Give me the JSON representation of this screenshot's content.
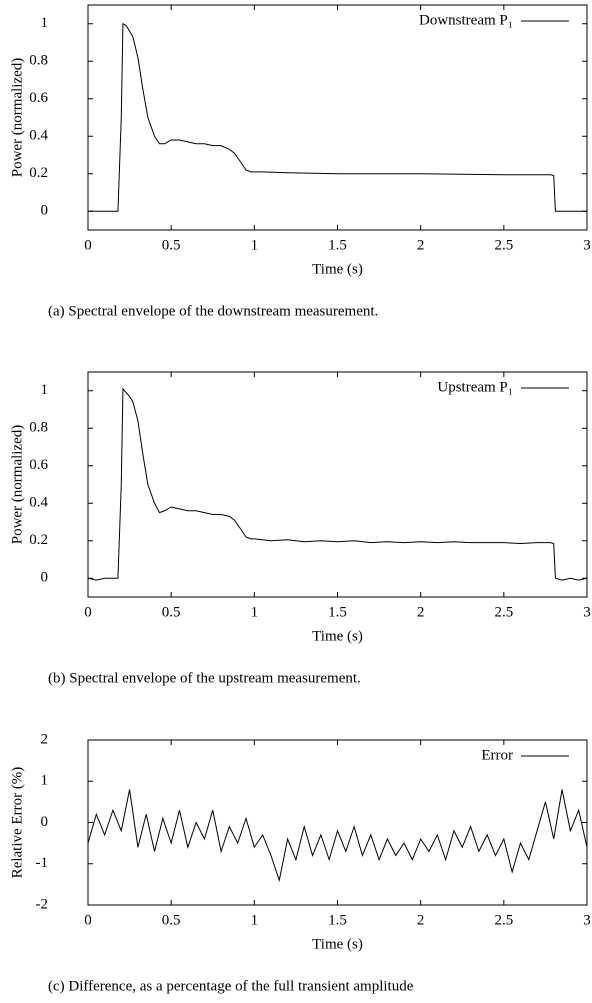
{
  "chart_data": [
    {
      "type": "line",
      "caption": "(a) Spectral envelope of the downstream measurement.",
      "xlabel": "Time (s)",
      "ylabel": "Power (normalized)",
      "xlim": [
        0,
        3
      ],
      "xticks": [
        0,
        0.5,
        1,
        1.5,
        2,
        2.5,
        3
      ],
      "ylim": [
        -0.1,
        1.1
      ],
      "yticks": [
        0,
        0.2,
        0.4,
        0.6,
        0.8,
        1
      ],
      "legend": "upper right",
      "series": [
        {
          "name": "Downstream P₁",
          "color": "#000000",
          "x": [
            0,
            0.18,
            0.2,
            0.21,
            0.23,
            0.25,
            0.27,
            0.3,
            0.33,
            0.36,
            0.4,
            0.43,
            0.46,
            0.5,
            0.55,
            0.6,
            0.65,
            0.7,
            0.75,
            0.8,
            0.85,
            0.88,
            0.92,
            0.95,
            0.98,
            1.0,
            1.05,
            1.2,
            1.5,
            2.0,
            2.5,
            2.78,
            2.8,
            2.81,
            3
          ],
          "values": [
            0,
            0,
            0.5,
            1.0,
            0.99,
            0.96,
            0.93,
            0.82,
            0.65,
            0.5,
            0.4,
            0.36,
            0.36,
            0.38,
            0.38,
            0.37,
            0.36,
            0.36,
            0.35,
            0.35,
            0.33,
            0.31,
            0.26,
            0.22,
            0.21,
            0.21,
            0.21,
            0.205,
            0.2,
            0.2,
            0.195,
            0.195,
            0.19,
            0,
            0
          ]
        }
      ]
    },
    {
      "type": "line",
      "caption": "(b) Spectral envelope of the upstream measurement.",
      "xlabel": "Time (s)",
      "ylabel": "Power (normalized)",
      "xlim": [
        0,
        3
      ],
      "xticks": [
        0,
        0.5,
        1,
        1.5,
        2,
        2.5,
        3
      ],
      "ylim": [
        -0.1,
        1.1
      ],
      "yticks": [
        0,
        0.2,
        0.4,
        0.6,
        0.8,
        1
      ],
      "legend": "upper right",
      "series": [
        {
          "name": "Upstream P₁",
          "color": "#000000",
          "x": [
            0,
            0.05,
            0.1,
            0.15,
            0.18,
            0.2,
            0.21,
            0.23,
            0.25,
            0.27,
            0.3,
            0.33,
            0.36,
            0.4,
            0.43,
            0.46,
            0.5,
            0.55,
            0.6,
            0.65,
            0.7,
            0.75,
            0.8,
            0.85,
            0.88,
            0.92,
            0.95,
            0.98,
            1.0,
            1.1,
            1.2,
            1.3,
            1.4,
            1.5,
            1.6,
            1.7,
            1.8,
            1.9,
            2.0,
            2.1,
            2.2,
            2.3,
            2.4,
            2.5,
            2.6,
            2.7,
            2.78,
            2.8,
            2.81,
            2.85,
            2.9,
            2.95,
            3
          ],
          "values": [
            0,
            -0.01,
            0.0,
            0.0,
            0.0,
            0.5,
            1.01,
            0.99,
            0.97,
            0.94,
            0.84,
            0.66,
            0.5,
            0.4,
            0.35,
            0.36,
            0.38,
            0.37,
            0.36,
            0.36,
            0.35,
            0.34,
            0.34,
            0.33,
            0.31,
            0.26,
            0.22,
            0.21,
            0.21,
            0.2,
            0.205,
            0.195,
            0.2,
            0.195,
            0.2,
            0.19,
            0.195,
            0.19,
            0.195,
            0.19,
            0.195,
            0.19,
            0.19,
            0.19,
            0.185,
            0.19,
            0.19,
            0.185,
            0,
            -0.01,
            0.0,
            -0.01,
            0
          ]
        }
      ]
    },
    {
      "type": "line",
      "caption": "(c) Difference, as a percentage of the full transient amplitude",
      "xlabel": "Time (s)",
      "ylabel": "Relative Error (%)",
      "xlim": [
        0,
        3
      ],
      "xticks": [
        0,
        0.5,
        1,
        1.5,
        2,
        2.5,
        3
      ],
      "ylim": [
        -2,
        2
      ],
      "yticks": [
        -2,
        -1,
        0,
        1,
        2
      ],
      "legend": "upper right",
      "series": [
        {
          "name": "Error",
          "color": "#000000",
          "x": [
            0,
            0.05,
            0.1,
            0.15,
            0.2,
            0.25,
            0.3,
            0.35,
            0.4,
            0.45,
            0.5,
            0.55,
            0.6,
            0.65,
            0.7,
            0.75,
            0.8,
            0.85,
            0.9,
            0.95,
            1.0,
            1.05,
            1.1,
            1.15,
            1.2,
            1.25,
            1.3,
            1.35,
            1.4,
            1.45,
            1.5,
            1.55,
            1.6,
            1.65,
            1.7,
            1.75,
            1.8,
            1.85,
            1.9,
            1.95,
            2.0,
            2.05,
            2.1,
            2.15,
            2.2,
            2.25,
            2.3,
            2.35,
            2.4,
            2.45,
            2.5,
            2.55,
            2.6,
            2.65,
            2.7,
            2.75,
            2.8,
            2.85,
            2.9,
            2.95,
            3.0
          ],
          "values": [
            -0.5,
            0.2,
            -0.3,
            0.3,
            -0.2,
            0.8,
            -0.6,
            0.2,
            -0.7,
            0.1,
            -0.5,
            0.3,
            -0.6,
            0.0,
            -0.4,
            0.3,
            -0.7,
            -0.1,
            -0.5,
            0.1,
            -0.6,
            -0.3,
            -0.8,
            -1.4,
            -0.4,
            -0.9,
            -0.1,
            -0.8,
            -0.3,
            -0.9,
            -0.2,
            -0.7,
            -0.1,
            -0.8,
            -0.3,
            -0.9,
            -0.4,
            -0.8,
            -0.5,
            -0.9,
            -0.4,
            -0.7,
            -0.3,
            -0.9,
            -0.2,
            -0.6,
            -0.1,
            -0.7,
            -0.3,
            -0.8,
            -0.4,
            -1.2,
            -0.5,
            -0.9,
            -0.2,
            0.5,
            -0.4,
            0.8,
            -0.2,
            0.3,
            -0.6
          ]
        }
      ]
    }
  ]
}
